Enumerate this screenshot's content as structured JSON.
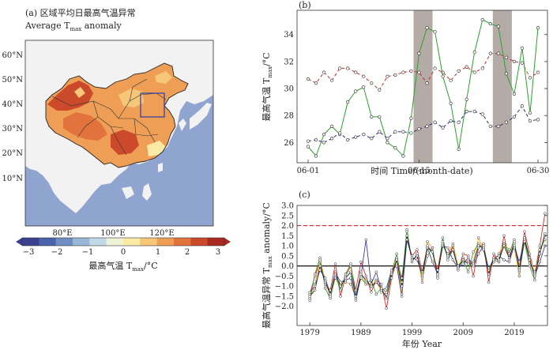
{
  "panel_a": {
    "title_cn": "(a) 区域平均日最高气温异常",
    "title_en_pre": "Average T",
    "title_en_sub": "max",
    "title_en_post": " anomaly",
    "lat_labels": [
      "60°N",
      "50°N",
      "40°N",
      "30°N",
      "20°N",
      "10°N"
    ],
    "lon_labels": [
      "80°E",
      "100°E",
      "120°E"
    ],
    "colorbar_ticks": [
      "−3",
      "−2",
      "−1",
      "0",
      "1",
      "2",
      "3"
    ],
    "colorbar_label_pre": "最高气温 T",
    "colorbar_label_sub": "max",
    "colorbar_label_post": "/°C",
    "colorbar_colors": [
      "#3a3f8f",
      "#4a63aa",
      "#6f8fc2",
      "#98b6d6",
      "#c3d8e6",
      "#eef3d6",
      "#fbeaa6",
      "#f6c778",
      "#ef9f55",
      "#e2733d",
      "#cc4a2c",
      "#a82a20"
    ]
  },
  "chart_data": [
    {
      "type": "line",
      "panel": "(b)",
      "xlabel": "时间 Time/(month-date)",
      "ylabel_pre": "最高气温 T",
      "ylabel_sub": "max",
      "ylabel_post": "/°C",
      "x_tick_labels": [
        "06-01",
        "06-15",
        "06-30"
      ],
      "x_tick_days": [
        1,
        15,
        30
      ],
      "ylim": [
        24.5,
        35.8
      ],
      "y_ticks": [
        26,
        28,
        30,
        32,
        34
      ],
      "shaded_periods": [
        [
          14.3,
          16.7
        ],
        [
          24.3,
          26.7
        ]
      ],
      "series": [
        {
          "name": "red dashed",
          "color": "#d62728",
          "dash": "4,3",
          "values": [
            30.7,
            30.4,
            31.2,
            30.6,
            31.5,
            31.5,
            31.2,
            30.9,
            30.4,
            29.9,
            30.9,
            31.0,
            31.2,
            31.3,
            31.2,
            30.4,
            31.5,
            31.2,
            30.6,
            31.3,
            31.6,
            31.2,
            31.5,
            32.6,
            32.6,
            32.3,
            32.0,
            31.9,
            30.8,
            31.2
          ]
        },
        {
          "name": "green",
          "color": "#2ca02c",
          "dash": "",
          "values": [
            25.7,
            25.0,
            26.6,
            27.2,
            26.6,
            29.0,
            29.8,
            30.1,
            27.9,
            27.9,
            26.0,
            25.6,
            25.0,
            27.8,
            32.6,
            34.5,
            34.2,
            30.9,
            28.9,
            25.5,
            29.2,
            32.7,
            35.1,
            34.8,
            34.6,
            31.1,
            29.6,
            33.0,
            28.2,
            34.5
          ]
        },
        {
          "name": "blue dashed",
          "color": "#2a2a7a",
          "dash": "4,3",
          "values": [
            26.1,
            26.2,
            26.0,
            26.3,
            26.7,
            26.2,
            26.4,
            26.6,
            26.3,
            26.8,
            26.3,
            26.8,
            26.8,
            26.7,
            27.0,
            27.2,
            27.5,
            27.1,
            27.6,
            27.5,
            28.3,
            28.3,
            28.1,
            27.2,
            27.2,
            27.5,
            27.9,
            28.7,
            27.6,
            27.7
          ]
        }
      ]
    },
    {
      "type": "line",
      "panel": "(c)",
      "xlabel": "年份 Year",
      "ylabel_pre": "最高气温异常 T",
      "ylabel_sub": "max",
      "ylabel_post": " anomaly/°C",
      "x_tick_labels": [
        "1979",
        "1989",
        "1999",
        "2009",
        "2019"
      ],
      "x_tick_years": [
        1979,
        1989,
        1999,
        2009,
        2019
      ],
      "xlim": [
        1976.5,
        2025.5
      ],
      "ylim": [
        -2.95,
        3.0
      ],
      "y_ticks": [
        -2.0,
        -1.5,
        -1.0,
        -0.5,
        0.0,
        0.5,
        1.0,
        1.5,
        2.0,
        2.5,
        3.0
      ],
      "y_tick_labels": [
        "−2.0",
        "−1.5",
        "−1.0",
        "−0.5",
        "0.0",
        "0.5",
        "1.0",
        "1.5",
        "2.0",
        "2.5",
        "3.0"
      ],
      "reference_line": 2.0,
      "start_year": 1979,
      "series": [
        {
          "name": "red",
          "color": "#d62728",
          "values": [
            -1.4,
            -0.5,
            0.2,
            -0.9,
            -1.2,
            0.1,
            -1.5,
            -0.5,
            0.0,
            -1.2,
            0.2,
            -0.5,
            -1.3,
            -0.7,
            -0.9,
            -2.1,
            -0.6,
            0.3,
            -0.6,
            1.3,
            0.5,
            0.8,
            -0.3,
            1.0,
            0.7,
            -0.2,
            1.2,
            0.4,
            1.0,
            -0.2,
            0.6,
            0.5,
            -0.5,
            0.9,
            1.1,
            -0.8,
            0.6,
            0.2,
            1.5,
            0.3,
            1.2,
            -0.1,
            1.7,
            0.6,
            -0.4,
            1.0,
            2.6
          ]
        },
        {
          "name": "orange",
          "color": "#f5a623",
          "values": [
            -1.6,
            -0.9,
            0.3,
            -0.7,
            -1.5,
            -0.6,
            -1.0,
            -0.8,
            -0.9,
            -1.6,
            -0.3,
            -0.9,
            -1.0,
            -0.7,
            -1.3,
            -1.4,
            -0.4,
            0.4,
            -1.4,
            1.7,
            0.3,
            0.5,
            -0.8,
            1.2,
            0.9,
            -0.5,
            1.0,
            0.6,
            1.1,
            0.0,
            0.4,
            0.2,
            0.2,
            1.4,
            0.8,
            -0.4,
            0.2,
            0.6,
            1.1,
            0.8,
            0.9,
            -0.5,
            1.4,
            0.4,
            -0.3,
            0.6,
            1.5
          ]
        },
        {
          "name": "green",
          "color": "#3a9a3a",
          "values": [
            -1.7,
            -0.4,
            0.4,
            -1.1,
            -1.6,
            -0.5,
            -1.2,
            -0.4,
            0.1,
            -1.5,
            -0.6,
            -0.9,
            -0.7,
            -1.4,
            -1.1,
            -1.3,
            -0.3,
            0.6,
            -0.8,
            1.8,
            0.2,
            0.6,
            -0.6,
            0.5,
            0.9,
            -0.6,
            1.4,
            0.3,
            0.8,
            0.0,
            0.3,
            -0.3,
            0.7,
            1.1,
            0.8,
            -0.1,
            0.3,
            0.2,
            1.1,
            0.6,
            1.3,
            -0.3,
            1.2,
            0.0,
            -0.7,
            0.8,
            1.3
          ]
        },
        {
          "name": "blue",
          "color": "#3c3c9c",
          "values": [
            -1.3,
            -1.0,
            -0.2,
            -0.6,
            -1.4,
            -0.3,
            -0.8,
            -0.7,
            -0.6,
            -1.7,
            -0.5,
            1.3,
            -0.9,
            -0.3,
            -1.2,
            -1.1,
            -0.2,
            0.0,
            -1.5,
            1.3,
            0.4,
            0.3,
            -0.4,
            0.9,
            0.2,
            -0.4,
            1.0,
            0.9,
            0.3,
            -0.1,
            0.1,
            0.4,
            0.0,
            0.6,
            1.0,
            -0.2,
            0.4,
            0.5,
            0.3,
            0.2,
            1.0,
            0.2,
            1.3,
            0.3,
            -0.5,
            0.2,
            1.0
          ]
        },
        {
          "name": "dark",
          "color": "#222222",
          "values": [
            -1.5,
            -1.2,
            0.0,
            -0.8,
            -1.4,
            -0.4,
            -1.0,
            -0.6,
            -0.3,
            -1.5,
            -0.4,
            -0.7,
            -1.0,
            -0.8,
            -1.1,
            -1.6,
            -0.4,
            0.3,
            -1.0,
            1.5,
            0.3,
            0.5,
            -0.5,
            0.9,
            0.7,
            -0.4,
            1.1,
            0.5,
            0.8,
            -0.1,
            0.3,
            0.1,
            0.1,
            1.0,
            0.9,
            -0.4,
            0.4,
            0.3,
            1.0,
            0.4,
            1.1,
            -0.2,
            1.4,
            0.3,
            -0.5,
            0.6,
            1.6
          ]
        }
      ]
    }
  ]
}
